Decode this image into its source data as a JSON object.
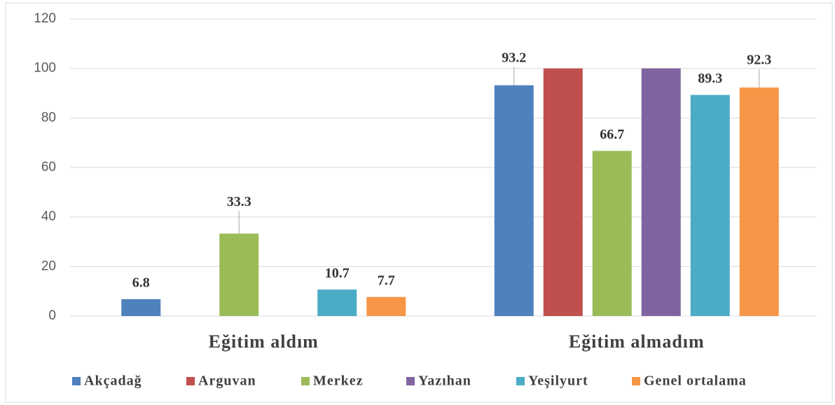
{
  "chart_data": {
    "type": "bar",
    "categories": [
      "Eğitim aldım",
      "Eğitim almadım"
    ],
    "series": [
      {
        "name": "Akçadağ",
        "color": "#4f81bd",
        "values": [
          6.8,
          93.2
        ],
        "value_labels": [
          "6.8",
          "93.2"
        ]
      },
      {
        "name": "Arguvan",
        "color": "#c0504d",
        "values": [
          0,
          100
        ],
        "value_labels": [
          null,
          null
        ]
      },
      {
        "name": "Merkez",
        "color": "#9bbb59",
        "values": [
          33.3,
          66.7
        ],
        "value_labels": [
          "33.3",
          "66.7"
        ]
      },
      {
        "name": "Yazıhan",
        "color": "#8064a2",
        "values": [
          0,
          100
        ],
        "value_labels": [
          null,
          null
        ]
      },
      {
        "name": "Yeşilyurt",
        "color": "#4bacc6",
        "values": [
          10.7,
          89.3
        ],
        "value_labels": [
          "10.7",
          "89.3"
        ]
      },
      {
        "name": "Genel ortalama",
        "color": "#f79646",
        "values": [
          7.7,
          92.3
        ],
        "value_labels": [
          "7.7",
          "92.3"
        ]
      }
    ],
    "ylim": [
      0,
      120
    ],
    "yticks": [
      0,
      20,
      40,
      60,
      80,
      100,
      120
    ],
    "grid": true,
    "legend": "bottom"
  }
}
